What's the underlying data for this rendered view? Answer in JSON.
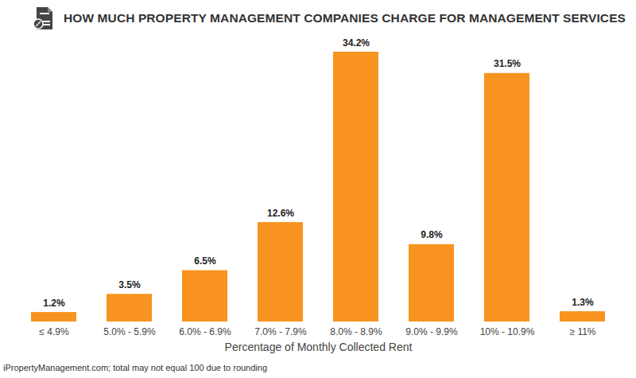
{
  "chart_data": {
    "type": "bar",
    "title": "HOW MUCH PROPERTY MANAGEMENT COMPANIES CHARGE FOR MANAGEMENT SERVICES",
    "caption": "iPropertyManagement.com; total may not equal 100 due to rounding",
    "xlabel": "Percentage of Monthly Collected Rent",
    "categories": [
      "≤ 4.9%",
      "5.0% - 5.9%",
      "6.0% - 6.9%",
      "7.0% - 7.9%",
      "8.0% - 8.9%",
      "9.0% - 9.9%",
      "10% - 10.9%",
      "≥ 11%"
    ],
    "values": [
      1.2,
      3.5,
      6.5,
      12.6,
      34.2,
      9.8,
      31.5,
      1.3
    ],
    "value_labels": [
      "1.2%",
      "3.5%",
      "6.5%",
      "12.6%",
      "34.2%",
      "9.8%",
      "31.5%",
      "1.3%"
    ],
    "color": "#f7931e",
    "data_labels": true,
    "tick_labels": "x",
    "grid": false
  }
}
